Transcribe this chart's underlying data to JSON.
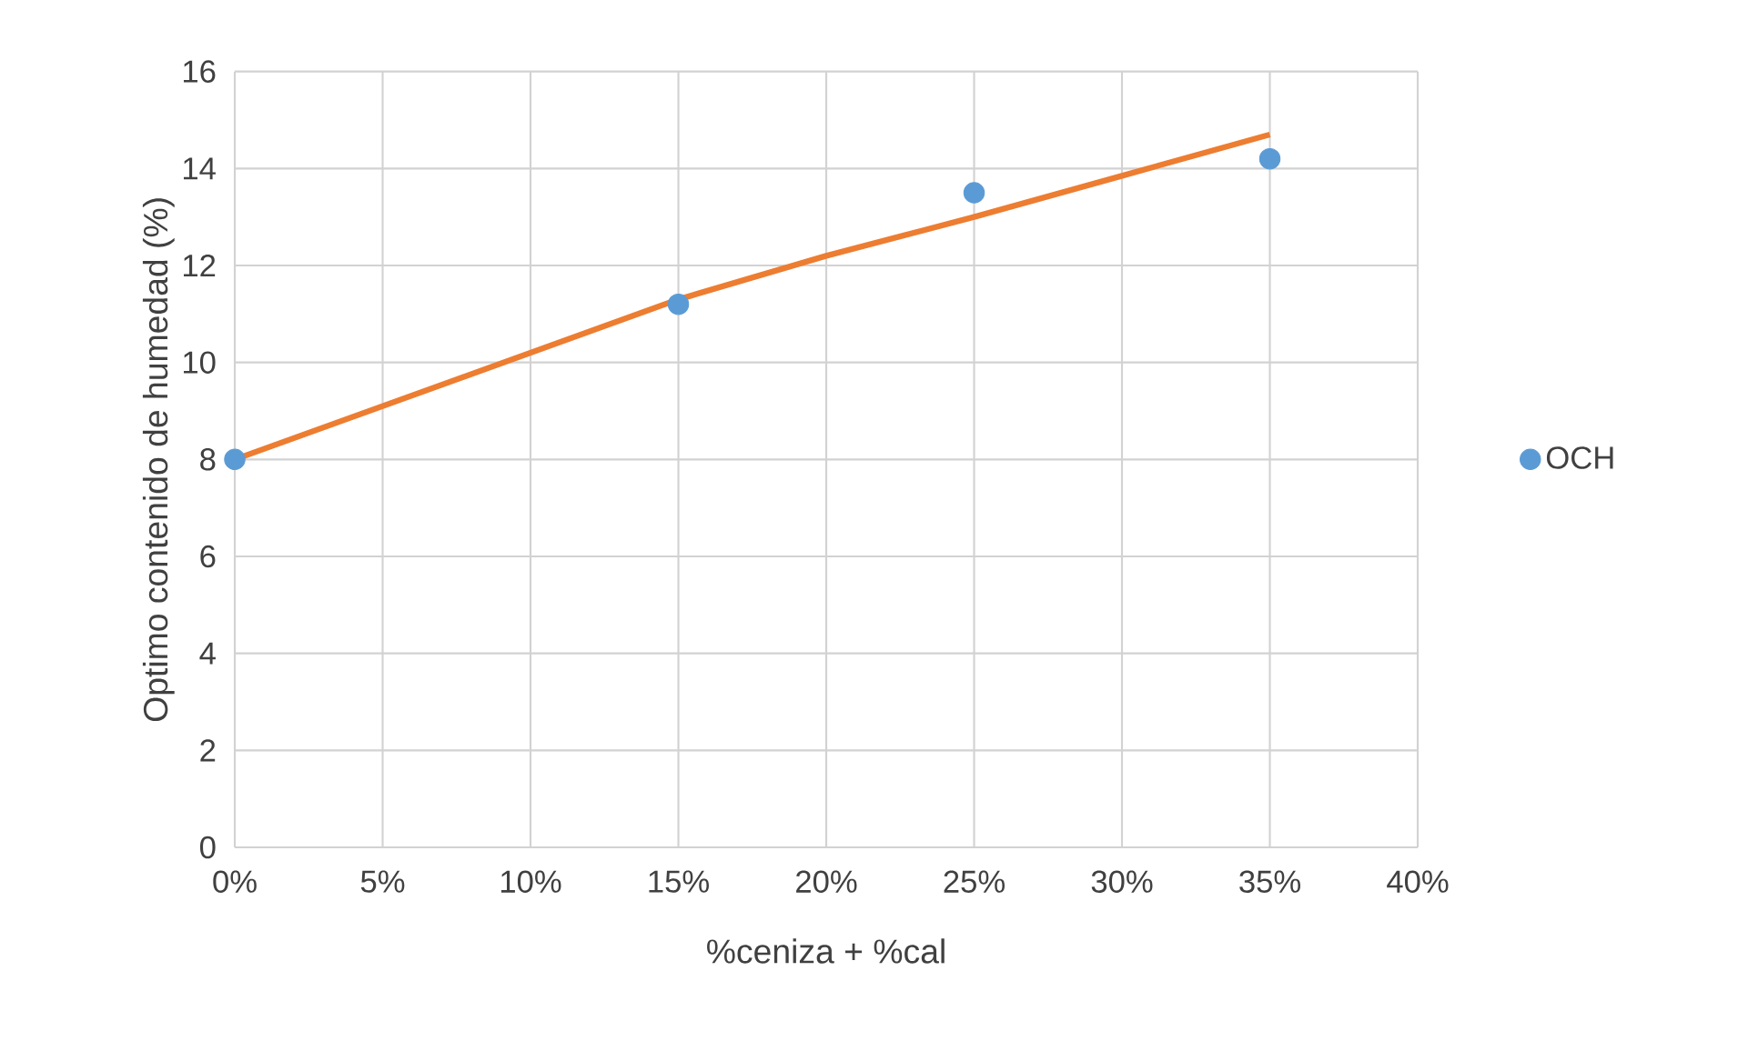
{
  "chart_data": {
    "type": "scatter",
    "xlabel": "%ceniza + %cal",
    "ylabel": "Optimo contenido de humedad (%)",
    "xlim": [
      0,
      40
    ],
    "ylim": [
      0,
      16
    ],
    "xticks": [
      {
        "value": 0,
        "label": "0%"
      },
      {
        "value": 5,
        "label": "5%"
      },
      {
        "value": 10,
        "label": "10%"
      },
      {
        "value": 15,
        "label": "15%"
      },
      {
        "value": 20,
        "label": "20%"
      },
      {
        "value": 25,
        "label": "25%"
      },
      {
        "value": 30,
        "label": "30%"
      },
      {
        "value": 35,
        "label": "35%"
      },
      {
        "value": 40,
        "label": "40%"
      }
    ],
    "yticks": [
      0,
      2,
      4,
      6,
      8,
      10,
      12,
      14,
      16
    ],
    "grid": true,
    "legend": "right",
    "series": [
      {
        "name": "OCH",
        "marker": "circle",
        "color": "#5b9bd5",
        "x": [
          0,
          15,
          25,
          35
        ],
        "values": [
          8,
          11.2,
          13.5,
          14.2
        ]
      },
      {
        "type": "line",
        "color": "#ed7d31",
        "x": [
          0,
          5,
          10,
          15,
          20,
          25,
          30,
          35
        ],
        "values": [
          8,
          9.1,
          10.2,
          11.3,
          12.2,
          13.0,
          13.85,
          14.7
        ]
      }
    ]
  }
}
